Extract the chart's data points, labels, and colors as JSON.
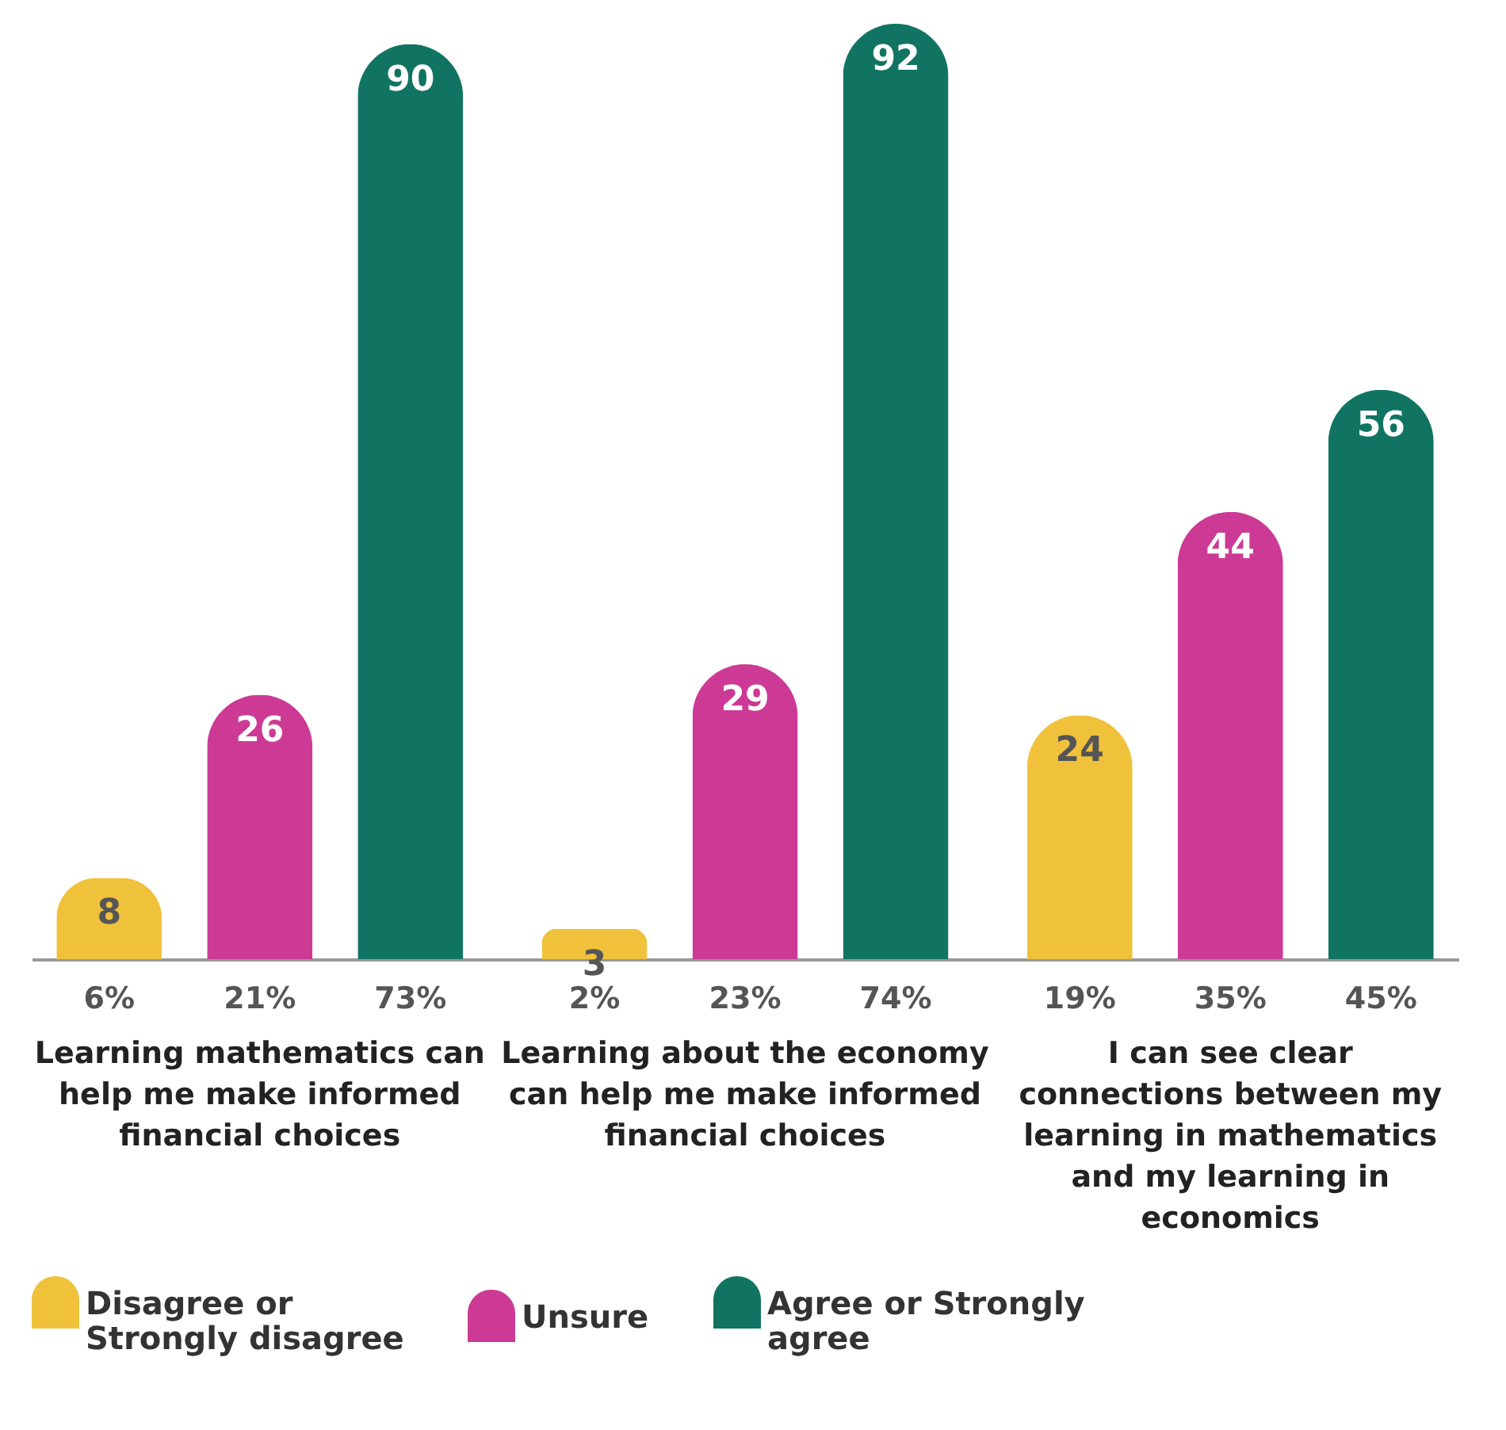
{
  "chart_data": {
    "type": "bar",
    "categories": [
      "Learning mathematics can help me make informed financial choices",
      "Learning about the economy can help me make informed financial choices",
      "I can see clear connections between my learning in mathematics and my learning in economics"
    ],
    "series": [
      {
        "name": "Disagree or Strongly disagree",
        "color": "#f0c13b",
        "values": [
          8,
          3,
          24
        ]
      },
      {
        "name": "Unsure",
        "color": "#cc3a96",
        "values": [
          26,
          29,
          44
        ]
      },
      {
        "name": "Agree or Strongly agree",
        "color": "#117462",
        "values": [
          90,
          92,
          56
        ]
      }
    ],
    "data_labels": true,
    "annotations": [
      "6%",
      "21%",
      "73%",
      "2%",
      "23%",
      "74%",
      "19%",
      "35%",
      "45%"
    ],
    "legend": "bottom"
  }
}
